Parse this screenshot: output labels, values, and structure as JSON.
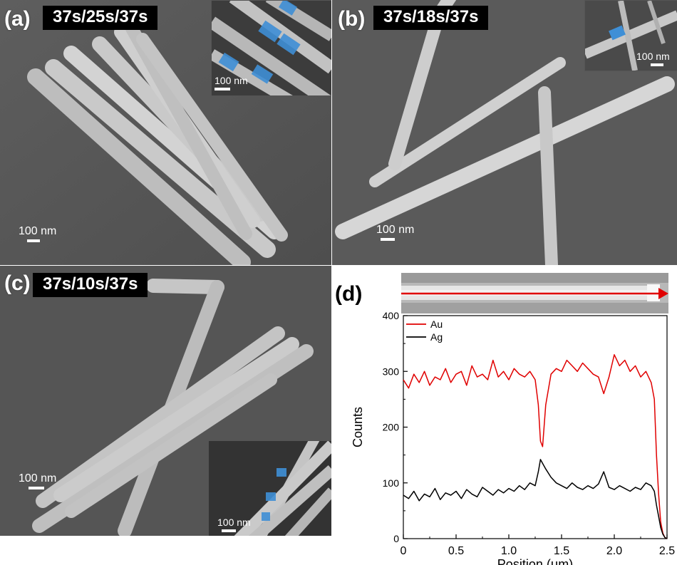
{
  "panels": {
    "a": {
      "label": "(a)",
      "condition": "37s/25s/37s",
      "scale_main": "100 nm",
      "scale_inset": "100 nm"
    },
    "b": {
      "label": "(b)",
      "condition": "37s/18s/37s",
      "scale_main": "100 nm",
      "scale_inset": "100 nm"
    },
    "c": {
      "label": "(c)",
      "condition": "37s/10s/37s",
      "scale_main": "100 nm",
      "scale_inset": "100 nm"
    },
    "d": {
      "label": "(d)"
    }
  },
  "colors": {
    "au": "#e00000",
    "ag": "#000000",
    "segment_highlight": "#3f8fd6",
    "arrow": "#e00000"
  },
  "chart_data": {
    "type": "line",
    "xlabel": "Position (μm)",
    "ylabel": "Counts",
    "xlim": [
      0,
      2.5
    ],
    "ylim": [
      0,
      400
    ],
    "x_ticks": [
      "0",
      "0.5",
      "1.0",
      "1.5",
      "2.0",
      "2.5"
    ],
    "y_ticks": [
      "0",
      "100",
      "200",
      "300",
      "400"
    ],
    "legend_position": "top-left",
    "series": [
      {
        "name": "Au",
        "x": [
          0,
          0.05,
          0.1,
          0.15,
          0.2,
          0.25,
          0.3,
          0.35,
          0.4,
          0.45,
          0.5,
          0.55,
          0.6,
          0.65,
          0.7,
          0.75,
          0.8,
          0.85,
          0.9,
          0.95,
          1.0,
          1.05,
          1.1,
          1.15,
          1.2,
          1.25,
          1.28,
          1.3,
          1.32,
          1.35,
          1.4,
          1.45,
          1.5,
          1.55,
          1.6,
          1.65,
          1.7,
          1.75,
          1.8,
          1.85,
          1.9,
          1.95,
          2.0,
          2.05,
          2.1,
          2.15,
          2.2,
          2.25,
          2.3,
          2.35,
          2.38,
          2.4,
          2.42,
          2.44,
          2.46,
          2.48,
          2.5
        ],
        "y": [
          285,
          270,
          295,
          280,
          300,
          275,
          290,
          285,
          305,
          280,
          295,
          300,
          275,
          310,
          290,
          295,
          285,
          320,
          290,
          300,
          285,
          305,
          295,
          290,
          300,
          285,
          240,
          175,
          165,
          240,
          295,
          305,
          300,
          320,
          310,
          300,
          315,
          305,
          295,
          290,
          260,
          290,
          330,
          310,
          320,
          300,
          310,
          290,
          300,
          280,
          250,
          150,
          80,
          30,
          10,
          2,
          0
        ]
      },
      {
        "name": "Ag",
        "x": [
          0,
          0.05,
          0.1,
          0.15,
          0.2,
          0.25,
          0.3,
          0.35,
          0.4,
          0.45,
          0.5,
          0.55,
          0.6,
          0.65,
          0.7,
          0.75,
          0.8,
          0.85,
          0.9,
          0.95,
          1.0,
          1.05,
          1.1,
          1.15,
          1.2,
          1.25,
          1.28,
          1.3,
          1.32,
          1.35,
          1.4,
          1.45,
          1.5,
          1.55,
          1.6,
          1.65,
          1.7,
          1.75,
          1.8,
          1.85,
          1.9,
          1.95,
          2.0,
          2.05,
          2.1,
          2.15,
          2.2,
          2.25,
          2.3,
          2.35,
          2.38,
          2.4,
          2.42,
          2.44,
          2.46,
          2.48,
          2.5
        ],
        "y": [
          78,
          72,
          85,
          68,
          80,
          75,
          90,
          70,
          82,
          78,
          85,
          72,
          88,
          80,
          75,
          92,
          85,
          78,
          88,
          82,
          90,
          85,
          95,
          88,
          100,
          95,
          120,
          142,
          135,
          125,
          110,
          100,
          95,
          90,
          100,
          92,
          88,
          95,
          90,
          98,
          120,
          92,
          88,
          95,
          90,
          85,
          92,
          88,
          100,
          95,
          85,
          60,
          40,
          20,
          8,
          2,
          0
        ]
      }
    ]
  }
}
